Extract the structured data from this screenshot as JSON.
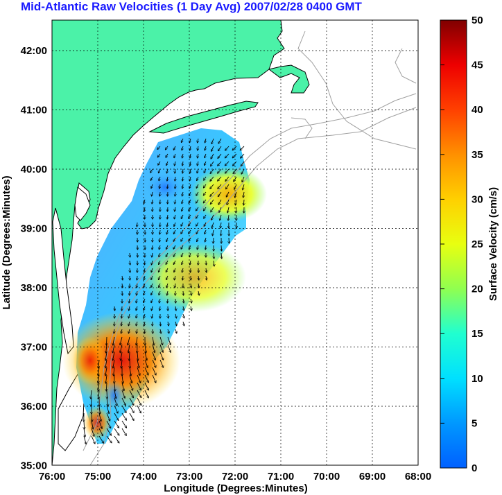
{
  "title": "Mid-Atlantic Raw Velocities (1 Day Avg) 2007/02/28 0400 GMT",
  "map": {
    "x_label": "Longitude (Degrees:Minutes)",
    "y_label": "Latitude (Degrees:Minutes)",
    "x_ticks": [
      "76:00",
      "75:00",
      "74:00",
      "73:00",
      "72:00",
      "71:00",
      "70:00",
      "69:00",
      "68:00"
    ],
    "y_ticks": [
      "42:00",
      "41:00",
      "40:00",
      "39:00",
      "38:00",
      "37:00",
      "36:00",
      "35:00"
    ],
    "land_color": "#4bf2a8",
    "coast_color": "#000000",
    "isobath_color": "#a0a0a0",
    "grid": true
  },
  "colorbar": {
    "label": "Surface Velocity (cm/s)",
    "ticks": [
      "50",
      "45",
      "40",
      "35",
      "30",
      "25",
      "20",
      "15",
      "10",
      "5",
      "0"
    ],
    "min": 0,
    "max": 50
  }
}
